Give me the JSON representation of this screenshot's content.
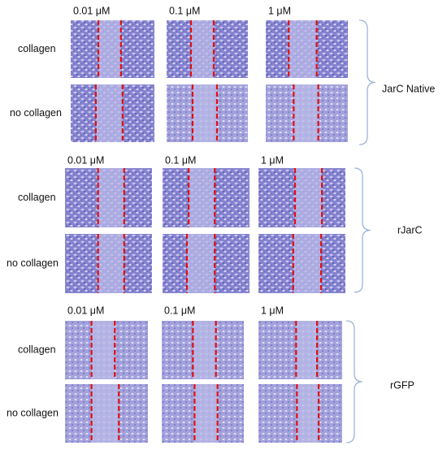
{
  "groups": [
    {
      "label": "JarC Native",
      "concentrations": [
        "0.01 μM",
        "0.1 μM",
        "1 μM"
      ],
      "rows": [
        "collagen",
        "no collagen"
      ]
    },
    {
      "label": "rJarC",
      "concentrations": [
        "0.01 μM",
        "0.1 μM",
        "1 μM"
      ],
      "rows": [
        "collagen",
        "no collagen"
      ]
    },
    {
      "label": "rGFP",
      "concentrations": [
        "0.01 μM",
        "0.1 μM",
        "1 μM"
      ],
      "rows": [
        "collagen",
        "no collagen"
      ]
    }
  ]
}
